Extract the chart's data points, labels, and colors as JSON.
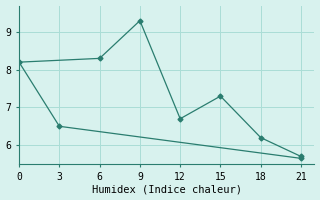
{
  "line1_x": [
    0,
    6,
    9,
    12,
    15,
    18,
    21
  ],
  "line1_y": [
    8.2,
    8.3,
    9.3,
    6.7,
    7.3,
    6.2,
    5.7
  ],
  "line2_x": [
    0,
    3,
    21
  ],
  "line2_y": [
    8.2,
    6.5,
    5.65
  ],
  "line_color": "#2a7d6f",
  "bg_color": "#d8f2ee",
  "grid_color": "#aaddd6",
  "axis_color": "#2a7d6f",
  "xlabel": "Humidex (Indice chaleur)",
  "xticks": [
    0,
    3,
    6,
    9,
    12,
    15,
    18,
    21
  ],
  "yticks": [
    6,
    7,
    8,
    9
  ],
  "xlim": [
    0,
    22
  ],
  "ylim": [
    5.5,
    9.7
  ],
  "xlabel_fontsize": 7.5,
  "tick_fontsize": 7
}
